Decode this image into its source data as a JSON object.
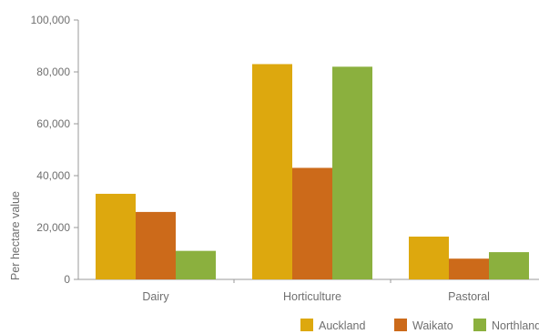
{
  "chart_data": {
    "type": "bar",
    "categories": [
      "Dairy",
      "Horticulture",
      "Pastoral"
    ],
    "series": [
      {
        "name": "Auckland",
        "values": [
          33000,
          83000,
          16500
        ],
        "color": "#DDA80E"
      },
      {
        "name": "Waikato",
        "values": [
          26000,
          43000,
          8000
        ],
        "color": "#CC6A1A"
      },
      {
        "name": "Northland",
        "values": [
          11000,
          82000,
          10500
        ],
        "color": "#8BB03E"
      }
    ],
    "xlabel": "",
    "ylabel": "Per hectare value",
    "ylim": [
      0,
      100000
    ],
    "yticks": [
      0,
      20000,
      40000,
      60000,
      80000,
      100000
    ],
    "ytick_labels": [
      "0",
      "20,000",
      "40,000",
      "60,000",
      "80,000",
      "100,000"
    ],
    "grid": false,
    "legend_position": "bottom-right"
  }
}
